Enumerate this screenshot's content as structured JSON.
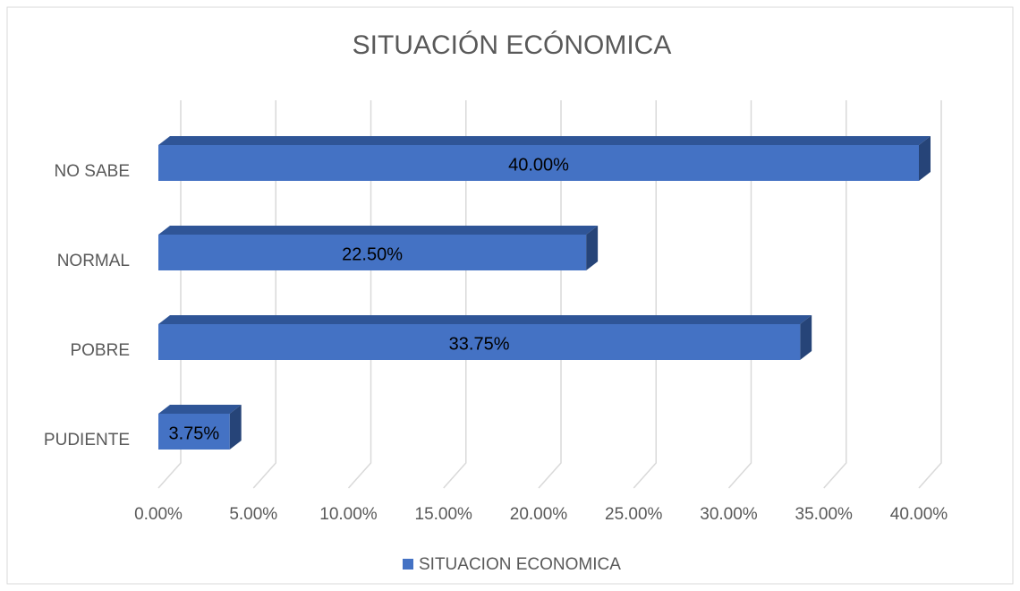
{
  "chart_data": {
    "type": "bar3d_horizontal",
    "title": "SITUACIÓN ECÓNOMICA",
    "categories": [
      "NO SABE",
      "NORMAL",
      "POBRE",
      "PUDIENTE"
    ],
    "series": [
      {
        "name": "SITUACION ECONOMICA",
        "color": "#4472c4",
        "values": [
          40,
          22.5,
          33.75,
          3.75
        ],
        "value_labels": [
          "40.00%",
          "22.50%",
          "33.75%",
          "3.75%"
        ]
      }
    ],
    "xlim": [
      0,
      40
    ],
    "xticks": [
      {
        "value": 0,
        "label": "0.00%"
      },
      {
        "value": 5,
        "label": "5.00%"
      },
      {
        "value": 10,
        "label": "10.00%"
      },
      {
        "value": 15,
        "label": "15.00%"
      },
      {
        "value": 20,
        "label": "20.00%"
      },
      {
        "value": 25,
        "label": "25.00%"
      },
      {
        "value": 30,
        "label": "30.00%"
      },
      {
        "value": 35,
        "label": "35.00%"
      },
      {
        "value": 40,
        "label": "40.00%"
      }
    ],
    "grid": true,
    "legend": "bottom"
  }
}
